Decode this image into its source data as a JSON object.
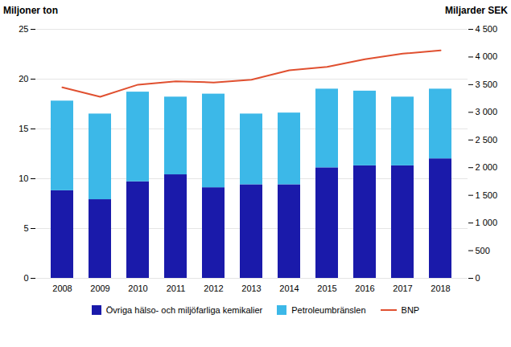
{
  "chart_data": {
    "type": "bar",
    "categories": [
      "2008",
      "2009",
      "2010",
      "2011",
      "2012",
      "2013",
      "2014",
      "2015",
      "2016",
      "2017",
      "2018"
    ],
    "series": [
      {
        "name": "Övriga hälso- och miljöfarliga kemikalier",
        "color": "#1a1aaa",
        "values": [
          8.8,
          7.9,
          9.7,
          10.4,
          9.1,
          9.4,
          9.4,
          11.1,
          11.3,
          11.3,
          12.0
        ]
      },
      {
        "name": "Petroleumbränslen",
        "color": "#3cb8e8",
        "values": [
          9.0,
          8.6,
          9.0,
          7.8,
          9.4,
          7.1,
          7.2,
          7.9,
          7.5,
          6.9,
          7.0
        ]
      },
      {
        "name": "BNP",
        "color": "#e05030",
        "type": "line",
        "axis": "y2",
        "values": [
          3450,
          3280,
          3500,
          3560,
          3540,
          3590,
          3760,
          3820,
          3960,
          4060,
          4120
        ]
      }
    ],
    "stacked": true,
    "ylabel": "Miljoner ton",
    "y2label": "Miljarder SEK",
    "ylim": [
      0,
      25
    ],
    "yticks": [
      0,
      5,
      10,
      15,
      20,
      25
    ],
    "y2lim": [
      0,
      4500
    ],
    "y2ticks": [
      0,
      500,
      {
        "value": 1000,
        "label": "1 000"
      },
      {
        "value": 1500,
        "label": "1 500"
      },
      {
        "value": 2000,
        "label": "2 000"
      },
      {
        "value": 2500,
        "label": "2 500"
      },
      {
        "value": 3000,
        "label": "3 000"
      },
      {
        "value": 3500,
        "label": "3 500"
      },
      {
        "value": 4000,
        "label": "4 000"
      },
      {
        "value": 4500,
        "label": "4 500"
      }
    ],
    "grid": true,
    "legend": "bottom"
  }
}
